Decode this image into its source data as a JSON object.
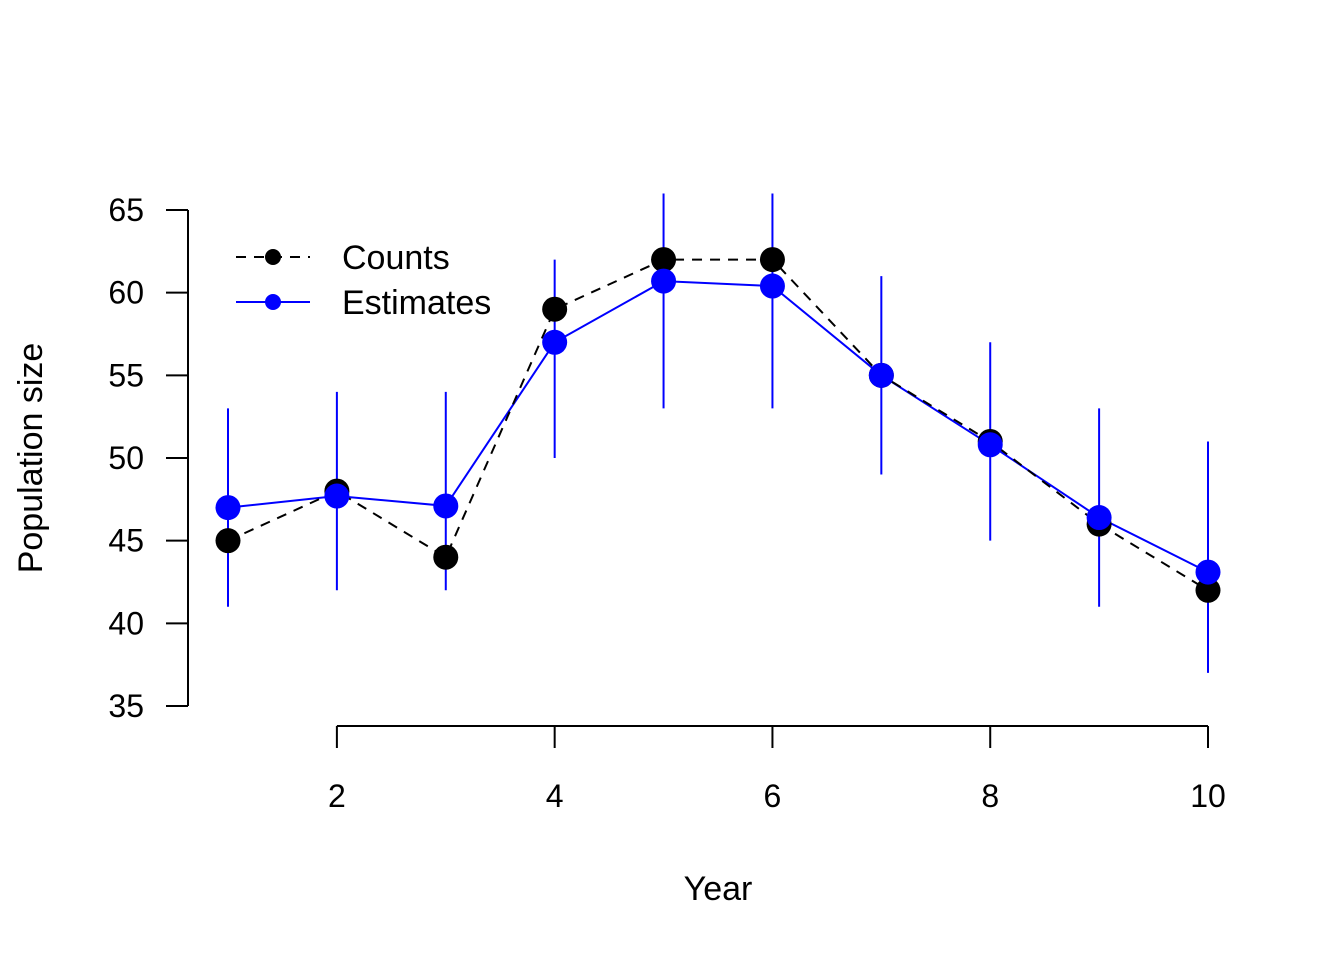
{
  "chart_data": {
    "type": "line",
    "title": "",
    "xlabel": "Year",
    "ylabel": "Population size",
    "xlim": [
      1,
      10
    ],
    "ylim": [
      35,
      65
    ],
    "x_ticks": [
      2,
      4,
      6,
      8,
      10
    ],
    "y_ticks": [
      35,
      40,
      45,
      50,
      55,
      60,
      65
    ],
    "grid": false,
    "legend_position": "top-left",
    "x": [
      1,
      2,
      3,
      4,
      5,
      6,
      7,
      8,
      9,
      10
    ],
    "series": [
      {
        "name": "Counts",
        "color": "#000000",
        "line_style": "dashed",
        "values": [
          45,
          48,
          44,
          59,
          62,
          62,
          55,
          51,
          46,
          42
        ]
      },
      {
        "name": "Estimates",
        "color": "#0000ff",
        "line_style": "solid",
        "values": [
          47,
          47.7,
          47.1,
          57,
          60.7,
          60.4,
          55,
          50.8,
          46.4,
          43.1
        ],
        "lower": [
          41,
          42,
          42,
          50,
          53,
          53,
          49,
          45,
          41,
          37
        ],
        "upper": [
          53,
          54,
          54,
          62,
          66,
          66,
          61,
          57,
          53,
          51
        ]
      }
    ]
  }
}
